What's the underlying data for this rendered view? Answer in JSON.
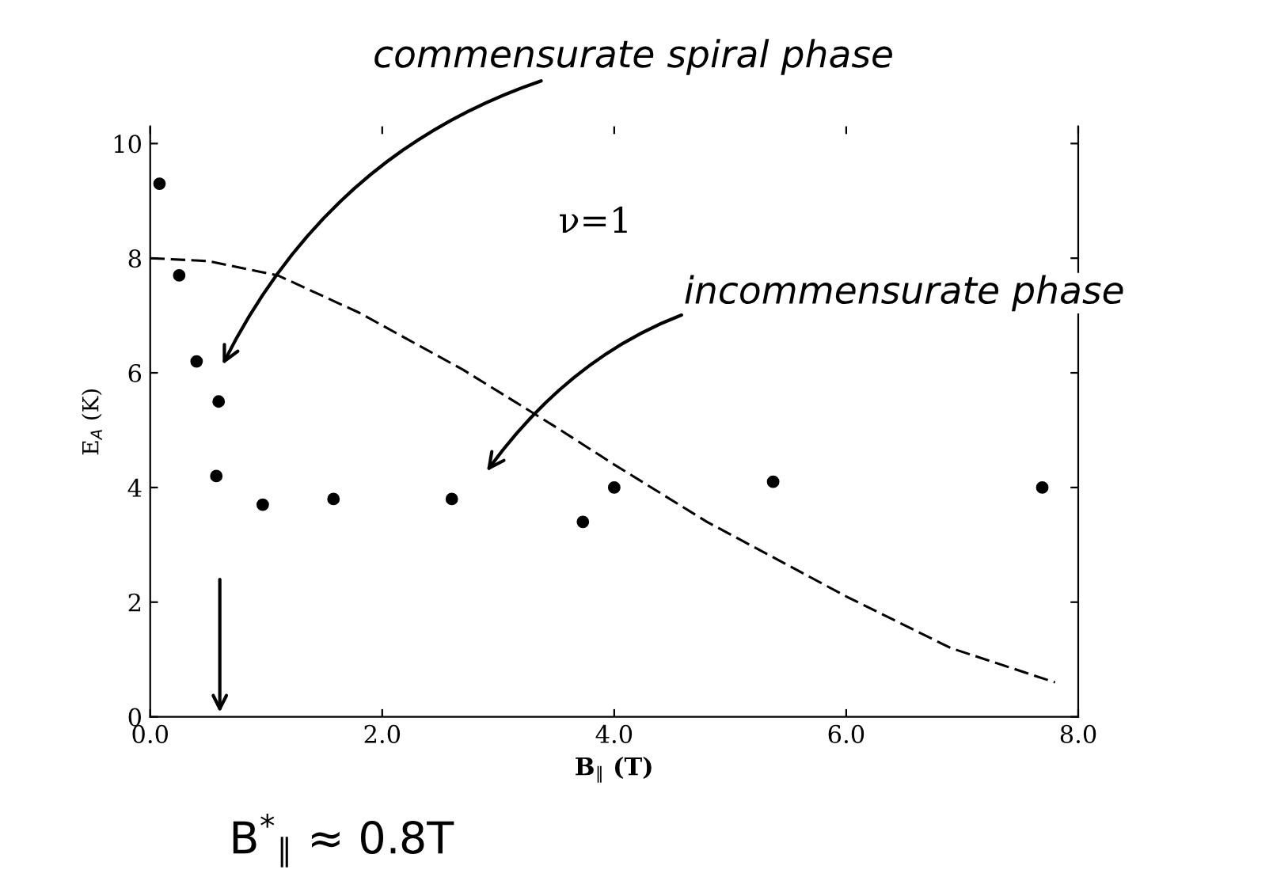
{
  "chart_data": {
    "type": "scatter",
    "xlabel": "B$_{∥}$ (T)",
    "ylabel": "E$_{A}$ (K)",
    "series": [
      {
        "color": "#000000",
        "marker": "circle",
        "x": [
          0.08,
          0.25,
          0.4,
          0.59,
          0.57,
          0.97,
          1.58,
          2.6,
          3.73,
          4.0,
          5.37,
          7.69
        ],
        "values": [
          9.3,
          7.7,
          6.2,
          5.5,
          4.2,
          3.7,
          3.8,
          3.8,
          3.4,
          4.0,
          4.1,
          4.0
        ]
      },
      {
        "type": "line",
        "color": "#000000",
        "line_style": "dashed",
        "x": [
          0.0,
          0.5,
          1.1,
          1.8,
          2.7,
          3.5,
          4.0,
          4.8,
          6.0,
          6.9,
          7.8
        ],
        "values": [
          8.0,
          7.95,
          7.7,
          7.05,
          6.05,
          5.05,
          4.4,
          3.4,
          2.1,
          1.2,
          0.6
        ]
      }
    ],
    "xlim": [
      0,
      8
    ],
    "ylim": [
      0,
      10.3
    ],
    "xticks": [
      {
        "value": 0,
        "label": "0.0"
      },
      {
        "value": 2,
        "label": "2.0"
      },
      {
        "value": 4,
        "label": "4.0"
      },
      {
        "value": 6,
        "label": "6.0"
      },
      {
        "value": 8,
        "label": "8.0"
      }
    ],
    "yticks": [
      0,
      2,
      4,
      6,
      8,
      10
    ],
    "grid": false,
    "legend": false,
    "annotations": [
      "ν=1",
      "commensurate spiral phase",
      "incommensurate phase",
      "B$^{*}$$_{∥}$ ≈ 0.8T"
    ]
  }
}
